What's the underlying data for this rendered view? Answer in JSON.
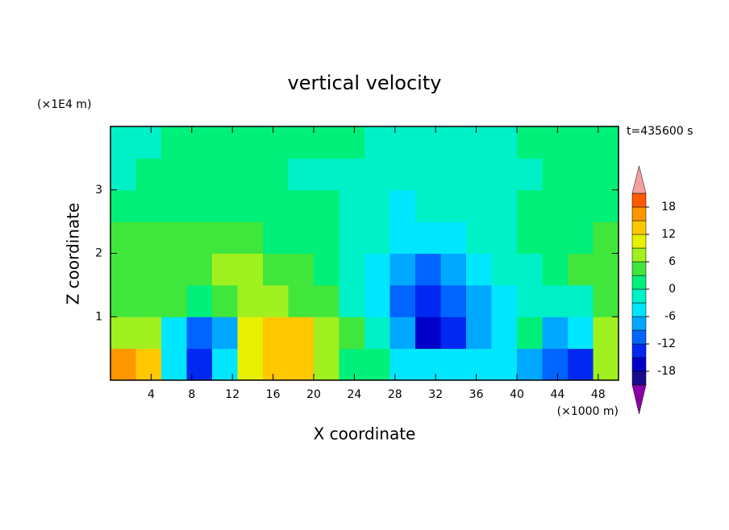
{
  "chart_data": {
    "type": "contour",
    "title": "vertical velocity",
    "xlabel": "X coordinate",
    "ylabel": "Z coordinate",
    "x_unit": "(×1000 m)",
    "y_unit": "(×1E4 m)",
    "annotation": "t=435600 s",
    "xlim": [
      0,
      50
    ],
    "ylim": [
      0,
      4
    ],
    "xticks": [
      4,
      8,
      12,
      16,
      20,
      24,
      28,
      32,
      36,
      40,
      44,
      48
    ],
    "yticks": [
      1,
      2,
      3
    ],
    "x": [
      1.25,
      3.75,
      6.25,
      8.75,
      11.25,
      13.75,
      16.25,
      18.75,
      21.25,
      23.75,
      26.25,
      28.75,
      31.25,
      33.75,
      36.25,
      38.75,
      41.25,
      43.75,
      46.25,
      48.75
    ],
    "y": [
      0.25,
      0.75,
      1.25,
      1.75,
      2.25,
      2.75,
      3.25,
      3.75
    ],
    "z": [
      [
        15,
        12,
        -6,
        -15,
        -6,
        9,
        13,
        13,
        6,
        2,
        1,
        -4,
        -4,
        -4,
        -4,
        -6,
        -7,
        -12,
        -13,
        8
      ],
      [
        8,
        6,
        -4,
        -10,
        -7,
        10,
        12,
        12,
        7,
        3,
        -2,
        -8,
        -16,
        -15,
        -8,
        -4,
        2,
        -7,
        -6,
        7
      ],
      [
        5,
        5,
        4,
        1,
        3,
        7,
        7,
        5,
        3,
        -1,
        -5,
        -10,
        -13,
        -11,
        -7,
        -4,
        -3,
        -3,
        -1,
        5
      ],
      [
        4,
        4,
        5,
        5,
        6,
        7,
        5,
        4,
        1,
        -1,
        -4,
        -8,
        -10,
        -7,
        -4,
        -2,
        -1,
        1,
        3,
        5
      ],
      [
        3,
        4,
        3,
        4,
        5,
        3,
        2,
        1,
        1,
        -1,
        -3,
        -6,
        -5,
        -4,
        -2,
        -1,
        0,
        1,
        2,
        3
      ],
      [
        1,
        1,
        1,
        1,
        1,
        1,
        1,
        1,
        1,
        -1,
        -2,
        -4,
        -3,
        -2,
        -1,
        -1,
        1,
        1,
        1,
        1
      ],
      [
        -1,
        1,
        1,
        1,
        1,
        1,
        1,
        -1,
        -1,
        -1,
        -1,
        -1,
        -1,
        -1,
        -1,
        -1,
        -1,
        1,
        1,
        1
      ],
      [
        -1,
        -1,
        1,
        1,
        1,
        1,
        1,
        1,
        1,
        1,
        -1,
        -1,
        -1,
        -1,
        -1,
        -1,
        1,
        1,
        1,
        1
      ]
    ],
    "levels": [
      -21,
      -18,
      -15,
      -12,
      -9,
      -6,
      -3,
      0,
      3,
      6,
      9,
      12,
      15,
      18,
      21
    ],
    "colors": [
      "#1a0a8c",
      "#0000c8",
      "#0028f0",
      "#0064ff",
      "#00a8ff",
      "#00e6ff",
      "#00f0c8",
      "#00f07a",
      "#40e63c",
      "#a0f020",
      "#e6f000",
      "#ffc800",
      "#ff9600",
      "#ff5a00",
      "#ff1e1e"
    ],
    "under_color": "#8a00a8",
    "over_color": "#f4a0a0",
    "colorbar_ticks": [
      -18,
      -12,
      -6,
      0,
      6,
      12,
      18
    ]
  }
}
